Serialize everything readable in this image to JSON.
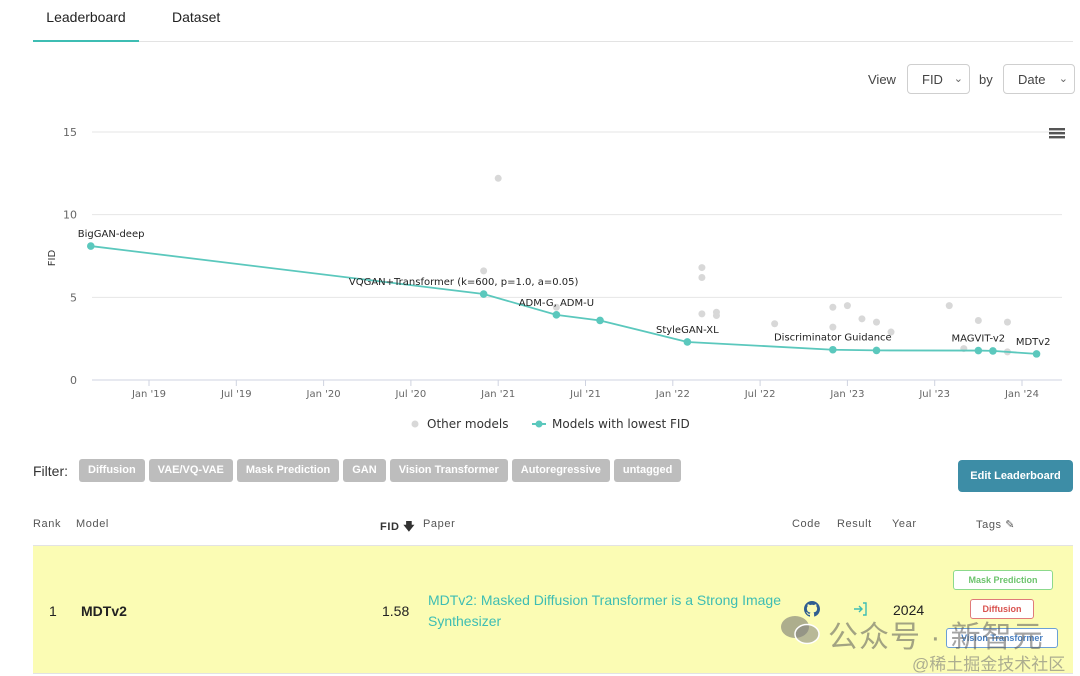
{
  "tabs": {
    "leaderboard": "Leaderboard",
    "dataset": "Dataset"
  },
  "view_controls": {
    "view_label": "View",
    "view_value": "FID",
    "by_label": "by",
    "by_value": "Date"
  },
  "chart_data": {
    "type": "scatter",
    "ylabel": "FID",
    "ylim": [
      0,
      15
    ],
    "yticks": [
      "0",
      "5",
      "10",
      "15"
    ],
    "xticks": [
      "Jan '19",
      "Jul '19",
      "Jan '20",
      "Jul '20",
      "Jan '21",
      "Jul '21",
      "Jan '22",
      "Jul '22",
      "Jan '23",
      "Jul '23",
      "Jan '24"
    ],
    "legend": [
      "Other models",
      "Models with lowest FID"
    ],
    "series": [
      {
        "name": "Models with lowest FID",
        "color": "#5bc8bd",
        "points": [
          {
            "date": "2018-09",
            "fid": 8.1,
            "label": "BigGAN-deep"
          },
          {
            "date": "2020-12",
            "fid": 5.2,
            "label": "VQGAN+Transformer (k=600, p=1.0, a=0.05)"
          },
          {
            "date": "2021-05",
            "fid": 3.94,
            "label": "ADM-G, ADM-U"
          },
          {
            "date": "2021-08",
            "fid": 3.6,
            "label": ""
          },
          {
            "date": "2022-02",
            "fid": 2.3,
            "label": "StyleGAN-XL"
          },
          {
            "date": "2022-12",
            "fid": 1.83,
            "label": "Discriminator Guidance"
          },
          {
            "date": "2023-03",
            "fid": 1.79,
            "label": ""
          },
          {
            "date": "2023-10",
            "fid": 1.78,
            "label": "MAGVIT-v2"
          },
          {
            "date": "2023-11",
            "fid": 1.76,
            "label": ""
          },
          {
            "date": "2024-02",
            "fid": 1.58,
            "label": "MDTv2"
          }
        ]
      },
      {
        "name": "Other models",
        "color": "#d8d8d8",
        "points": [
          {
            "date": "2021-01",
            "fid": 12.2
          },
          {
            "date": "2020-12",
            "fid": 6.6
          },
          {
            "date": "2022-03",
            "fid": 6.2
          },
          {
            "date": "2022-03",
            "fid": 6.8
          },
          {
            "date": "2022-03",
            "fid": 4.0
          },
          {
            "date": "2022-04",
            "fid": 4.1
          },
          {
            "date": "2022-04",
            "fid": 3.9
          },
          {
            "date": "2021-05",
            "fid": 4.4
          },
          {
            "date": "2022-08",
            "fid": 3.4
          },
          {
            "date": "2022-12",
            "fid": 4.4
          },
          {
            "date": "2023-01",
            "fid": 4.5
          },
          {
            "date": "2022-12",
            "fid": 3.2
          },
          {
            "date": "2023-02",
            "fid": 3.7
          },
          {
            "date": "2023-03",
            "fid": 3.5
          },
          {
            "date": "2023-04",
            "fid": 2.9
          },
          {
            "date": "2023-08",
            "fid": 4.5
          },
          {
            "date": "2023-10",
            "fid": 3.6
          },
          {
            "date": "2023-12",
            "fid": 3.5
          },
          {
            "date": "2023-12",
            "fid": 1.7
          },
          {
            "date": "2023-09",
            "fid": 1.9
          }
        ]
      }
    ]
  },
  "filter": {
    "label": "Filter:",
    "chips": [
      "Diffusion",
      "VAE/VQ-VAE",
      "Mask Prediction",
      "GAN",
      "Vision Transformer",
      "Autoregressive",
      "untagged"
    ]
  },
  "edit_button": "Edit Leaderboard",
  "table": {
    "headers": {
      "rank": "Rank",
      "model": "Model",
      "fid": "FID",
      "paper": "Paper",
      "code": "Code",
      "result": "Result",
      "year": "Year",
      "tags": "Tags"
    },
    "row": {
      "rank": "1",
      "model": "MDTv2",
      "fid": "1.58",
      "paper": "MDTv2: Masked Diffusion Transformer is a Strong Image Synthesizer",
      "year": "2024",
      "tags": [
        "Mask Prediction",
        "Diffusion",
        "Vision Transformer"
      ]
    }
  },
  "watermark": {
    "main": "公众号 · 新智元",
    "sub": "@稀土掘金技术社区"
  }
}
